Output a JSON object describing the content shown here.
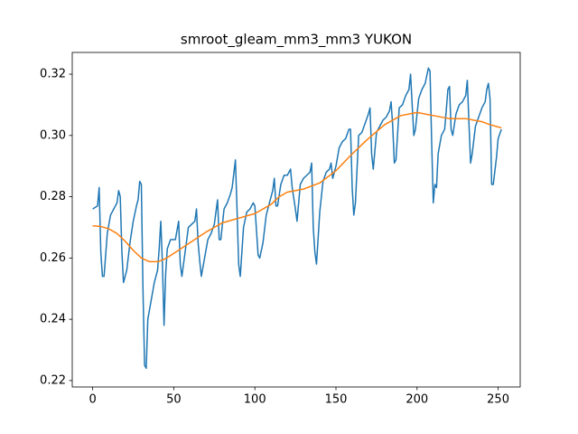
{
  "chart_data": {
    "type": "line",
    "title": "smroot_gleam_mm3_mm3 YUKON",
    "xlim": [
      -12.6,
      263.6
    ],
    "ylim": [
      0.2179,
      0.3271
    ],
    "xticks": [
      0,
      50,
      100,
      150,
      200,
      250
    ],
    "yticks": [
      0.22,
      0.24,
      0.26,
      0.28,
      {
        "value": 0.3,
        "label": "0.30"
      },
      0.32
    ],
    "series": [
      {
        "color": "#1f77b4",
        "x": [
          0,
          3,
          4,
          5,
          6,
          7,
          9,
          11,
          13,
          15,
          16,
          17,
          18,
          19,
          21,
          23,
          25,
          27,
          28,
          29,
          30,
          31,
          32,
          33,
          34,
          36,
          38,
          40,
          41,
          42,
          43,
          44,
          45,
          46,
          48,
          51,
          53,
          54,
          55,
          57,
          59,
          61,
          63,
          64,
          65,
          66,
          67,
          69,
          71,
          73,
          75,
          76,
          77,
          78,
          79,
          81,
          83,
          85,
          86,
          88,
          89,
          90,
          91,
          93,
          95,
          97,
          99,
          100,
          102,
          103,
          105,
          107,
          109,
          111,
          112,
          113,
          114,
          116,
          118,
          120,
          122,
          123,
          125,
          126,
          128,
          130,
          132,
          134,
          135,
          136,
          137,
          138,
          140,
          142,
          144,
          146,
          147,
          148,
          150,
          152,
          154,
          156,
          158,
          159,
          160,
          161,
          162,
          164,
          166,
          168,
          170,
          171,
          172,
          173,
          175,
          177,
          179,
          181,
          183,
          184,
          185,
          186,
          187,
          189,
          191,
          193,
          195,
          196,
          197,
          198,
          199,
          201,
          203,
          205,
          207,
          208,
          209,
          210,
          211,
          212,
          213,
          215,
          217,
          218,
          219,
          220,
          221,
          222,
          224,
          226,
          228,
          230,
          231,
          232,
          233,
          234,
          236,
          238,
          240,
          242,
          243,
          244,
          245,
          246,
          247,
          249,
          250,
          252
        ],
        "values": [
          0.276,
          0.277,
          0.283,
          0.262,
          0.254,
          0.254,
          0.268,
          0.274,
          0.276,
          0.278,
          0.282,
          0.28,
          0.262,
          0.252,
          0.256,
          0.265,
          0.272,
          0.277,
          0.279,
          0.285,
          0.284,
          0.25,
          0.225,
          0.224,
          0.24,
          0.246,
          0.252,
          0.256,
          0.263,
          0.272,
          0.258,
          0.238,
          0.255,
          0.263,
          0.266,
          0.266,
          0.272,
          0.258,
          0.254,
          0.262,
          0.27,
          0.271,
          0.272,
          0.276,
          0.265,
          0.259,
          0.254,
          0.26,
          0.266,
          0.268,
          0.271,
          0.275,
          0.279,
          0.266,
          0.266,
          0.276,
          0.278,
          0.281,
          0.283,
          0.292,
          0.276,
          0.258,
          0.254,
          0.27,
          0.275,
          0.276,
          0.278,
          0.277,
          0.261,
          0.26,
          0.265,
          0.274,
          0.278,
          0.282,
          0.286,
          0.277,
          0.277,
          0.284,
          0.287,
          0.287,
          0.289,
          0.283,
          0.276,
          0.272,
          0.284,
          0.286,
          0.287,
          0.288,
          0.291,
          0.27,
          0.262,
          0.258,
          0.275,
          0.285,
          0.288,
          0.289,
          0.291,
          0.286,
          0.29,
          0.296,
          0.298,
          0.299,
          0.302,
          0.302,
          0.283,
          0.274,
          0.278,
          0.3,
          0.301,
          0.304,
          0.307,
          0.309,
          0.294,
          0.289,
          0.301,
          0.303,
          0.305,
          0.306,
          0.308,
          0.311,
          0.303,
          0.291,
          0.292,
          0.309,
          0.31,
          0.313,
          0.315,
          0.32,
          0.31,
          0.3,
          0.302,
          0.312,
          0.315,
          0.317,
          0.322,
          0.321,
          0.298,
          0.278,
          0.284,
          0.283,
          0.294,
          0.3,
          0.302,
          0.308,
          0.315,
          0.316,
          0.302,
          0.3,
          0.307,
          0.31,
          0.311,
          0.313,
          0.318,
          0.304,
          0.291,
          0.294,
          0.303,
          0.306,
          0.309,
          0.311,
          0.315,
          0.317,
          0.312,
          0.284,
          0.284,
          0.293,
          0.299,
          0.302
        ]
      },
      {
        "color": "#ff7f0e",
        "x": [
          0,
          5,
          10,
          15,
          20,
          25,
          30,
          35,
          40,
          45,
          50,
          60,
          70,
          80,
          90,
          100,
          110,
          115,
          120,
          130,
          140,
          150,
          160,
          170,
          180,
          190,
          200,
          210,
          220,
          230,
          240,
          245,
          252
        ],
        "values": [
          0.2705,
          0.2703,
          0.2695,
          0.268,
          0.2655,
          0.2625,
          0.26,
          0.2588,
          0.2588,
          0.2598,
          0.2615,
          0.265,
          0.2685,
          0.2715,
          0.273,
          0.2745,
          0.2775,
          0.28,
          0.2815,
          0.2825,
          0.2845,
          0.2885,
          0.294,
          0.299,
          0.3035,
          0.3065,
          0.3075,
          0.3065,
          0.3055,
          0.3055,
          0.3045,
          0.3035,
          0.3025
        ]
      }
    ]
  }
}
